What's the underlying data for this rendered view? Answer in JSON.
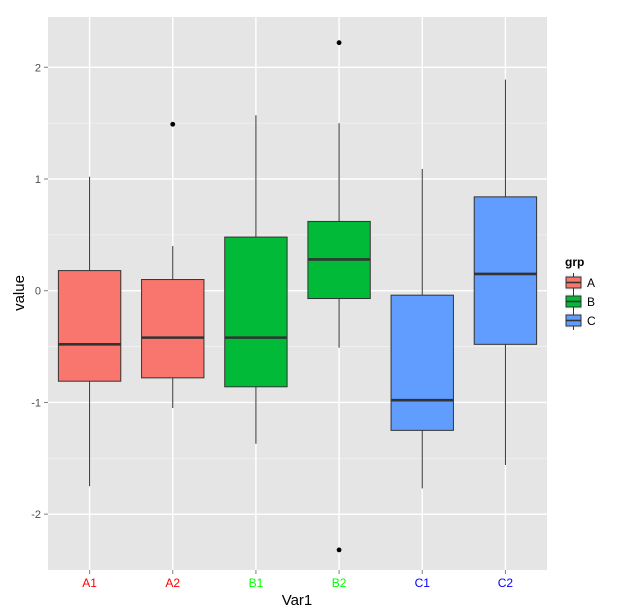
{
  "chart_data": {
    "type": "boxplot",
    "title": "",
    "xlabel": "Var1",
    "ylabel": "value",
    "ylim": [
      -2.5,
      2.45
    ],
    "yticks": [
      -2,
      -1,
      0,
      1,
      2
    ],
    "grid": true,
    "legend": {
      "title": "grp",
      "position": "right",
      "entries": [
        "A",
        "B",
        "C"
      ]
    },
    "group_colors": {
      "A": "#F8766D",
      "B": "#00BA38",
      "C": "#619CFF"
    },
    "tick_label_colors": {
      "A": "#FF0000",
      "B": "#00FF00",
      "C": "#0000FF"
    },
    "categories": [
      "A1",
      "A2",
      "B1",
      "B2",
      "C1",
      "C2"
    ],
    "boxes": [
      {
        "category": "A1",
        "group": "A",
        "lower_whisker": -1.75,
        "q1": -0.81,
        "median": -0.48,
        "q3": 0.18,
        "upper_whisker": 1.02,
        "outliers": []
      },
      {
        "category": "A2",
        "group": "A",
        "lower_whisker": -1.05,
        "q1": -0.78,
        "median": -0.42,
        "q3": 0.1,
        "upper_whisker": 0.4,
        "outliers": [
          1.49
        ]
      },
      {
        "category": "B1",
        "group": "B",
        "lower_whisker": -1.37,
        "q1": -0.86,
        "median": -0.42,
        "q3": 0.48,
        "upper_whisker": 1.57,
        "outliers": []
      },
      {
        "category": "B2",
        "group": "B",
        "lower_whisker": -0.51,
        "q1": -0.07,
        "median": 0.28,
        "q3": 0.62,
        "upper_whisker": 1.5,
        "outliers": [
          2.22,
          -2.32
        ]
      },
      {
        "category": "C1",
        "group": "C",
        "lower_whisker": -1.77,
        "q1": -1.25,
        "median": -0.98,
        "q3": -0.04,
        "upper_whisker": 1.09,
        "outliers": []
      },
      {
        "category": "C2",
        "group": "C",
        "lower_whisker": -1.56,
        "q1": -0.48,
        "median": 0.15,
        "q3": 0.84,
        "upper_whisker": 1.89,
        "outliers": []
      }
    ]
  }
}
